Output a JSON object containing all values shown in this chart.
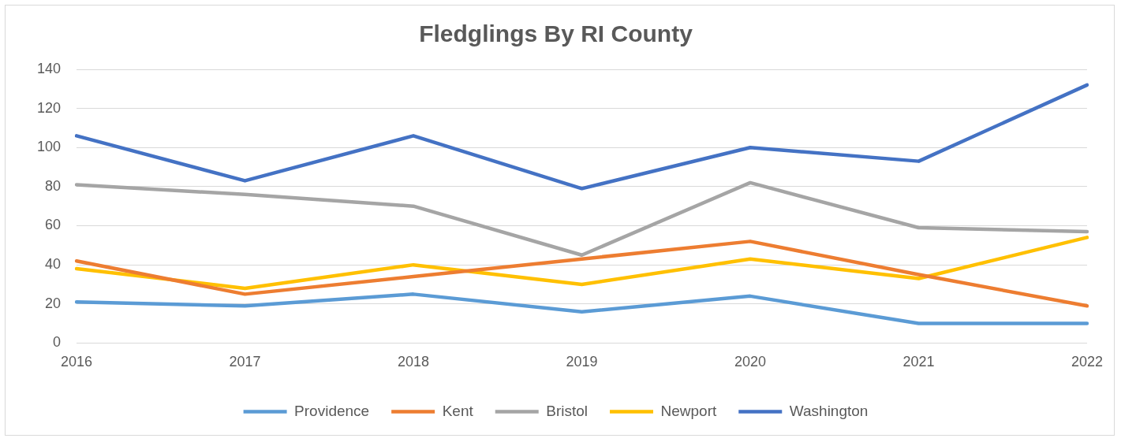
{
  "chart_data": {
    "type": "line",
    "title": "Fledglings By RI County",
    "categories": [
      "2016",
      "2017",
      "2018",
      "2019",
      "2020",
      "2021",
      "2022"
    ],
    "series": [
      {
        "name": "Providence",
        "color": "#5b9bd5",
        "values": [
          21,
          19,
          25,
          16,
          24,
          10,
          10
        ]
      },
      {
        "name": "Kent",
        "color": "#ed7d31",
        "values": [
          42,
          25,
          34,
          43,
          52,
          35,
          19
        ]
      },
      {
        "name": "Bristol",
        "color": "#a5a5a5",
        "values": [
          81,
          76,
          70,
          45,
          82,
          59,
          57
        ]
      },
      {
        "name": "Newport",
        "color": "#ffc000",
        "values": [
          38,
          28,
          40,
          30,
          43,
          33,
          54
        ]
      },
      {
        "name": "Washington",
        "color": "#4472c4",
        "values": [
          106,
          83,
          106,
          79,
          100,
          93,
          132
        ]
      }
    ],
    "ylim": [
      0,
      140
    ],
    "yticks": [
      0,
      20,
      40,
      60,
      80,
      100,
      120,
      140
    ],
    "grid": "y",
    "legend": "bottom",
    "marker": "none",
    "line_style": "solid"
  }
}
